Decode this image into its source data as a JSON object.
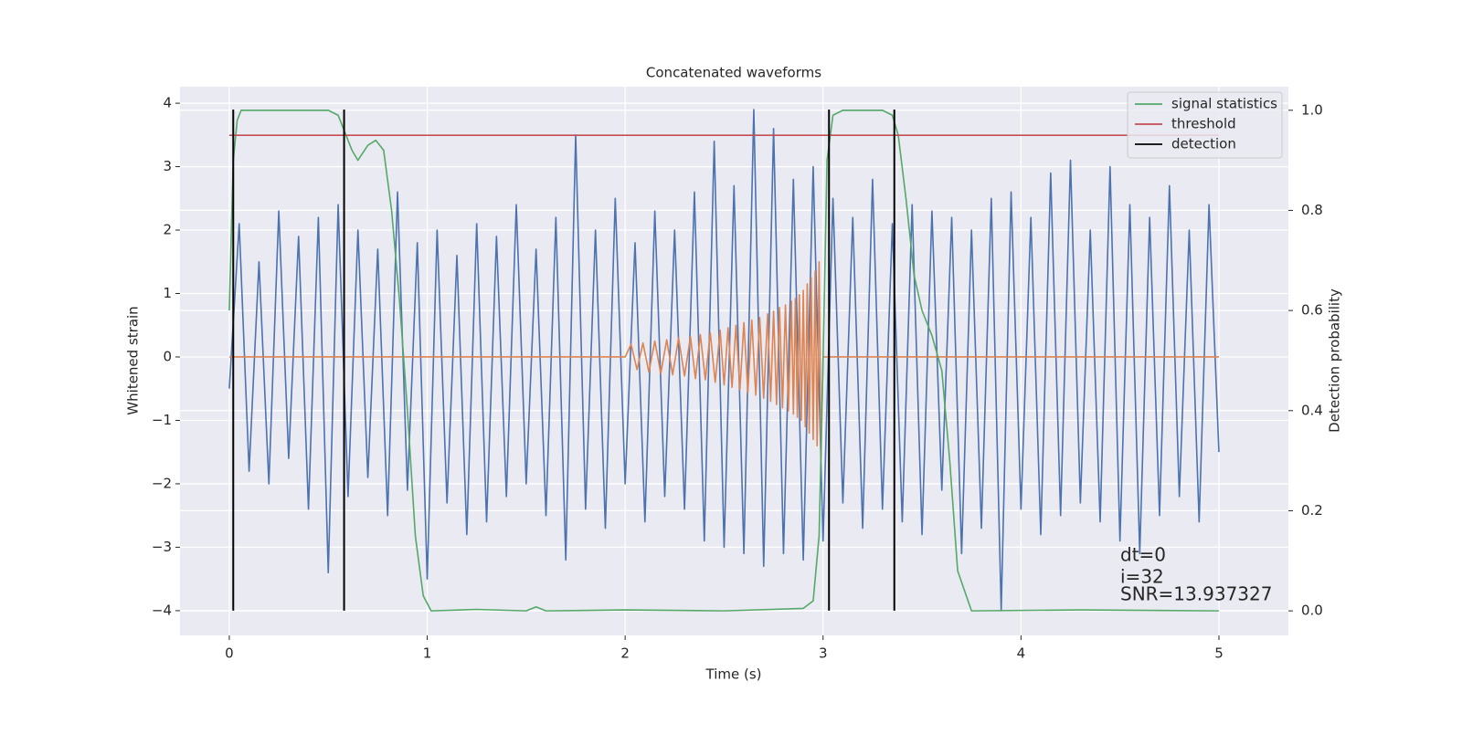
{
  "chart_data": {
    "type": "line",
    "title": "Concatenated waveforms",
    "x_label": "Time (s)",
    "y_label": "Whitened strain",
    "y2_label": "Detection probability",
    "xlim": [
      -0.249,
      5.351
    ],
    "xticks": [
      0,
      1,
      2,
      3,
      4,
      5
    ],
    "ylim": [
      -4.39,
      4.26
    ],
    "yticks": [
      {
        "value": -4,
        "label": "−4"
      },
      {
        "value": -3,
        "label": "−3"
      },
      {
        "value": -2,
        "label": "−2"
      },
      {
        "value": -1,
        "label": "−1"
      },
      0,
      1,
      2,
      3,
      4
    ],
    "y2lim": [
      -0.049,
      1.047
    ],
    "y2ticks": [
      {
        "value": 0,
        "label": "0.0"
      },
      {
        "value": 0.2,
        "label": "0.2"
      },
      {
        "value": 0.4,
        "label": "0.4"
      },
      {
        "value": 0.6,
        "label": "0.6"
      },
      {
        "value": 0.8,
        "label": "0.8"
      },
      {
        "value": 1,
        "label": "1.0"
      }
    ],
    "grid": true,
    "legend": "upper right",
    "series": [
      {
        "color": "#4c72b0",
        "x": [
          0,
          0.05,
          0.1,
          0.15,
          0.2,
          0.25,
          0.3,
          0.35,
          0.4,
          0.45,
          0.5,
          0.55,
          0.6,
          0.65,
          0.7,
          0.75,
          0.8,
          0.85,
          0.9,
          0.95,
          1,
          1.05,
          1.1,
          1.15,
          1.2,
          1.25,
          1.3,
          1.35,
          1.4,
          1.45,
          1.5,
          1.55,
          1.6,
          1.65,
          1.7,
          1.75,
          1.8,
          1.85,
          1.9,
          1.95,
          2,
          2.05,
          2.1,
          2.15,
          2.2,
          2.25,
          2.3,
          2.35,
          2.4,
          2.45,
          2.5,
          2.55,
          2.6,
          2.65,
          2.7,
          2.75,
          2.8,
          2.85,
          2.9,
          2.95,
          3,
          3.05,
          3.1,
          3.15,
          3.2,
          3.25,
          3.3,
          3.35,
          3.4,
          3.45,
          3.5,
          3.55,
          3.6,
          3.65,
          3.7,
          3.75,
          3.8,
          3.85,
          3.9,
          3.95,
          4,
          4.05,
          4.1,
          4.15,
          4.2,
          4.25,
          4.3,
          4.35,
          4.4,
          4.45,
          4.5,
          4.55,
          4.6,
          4.65,
          4.7,
          4.75,
          4.8,
          4.85,
          4.9,
          4.95,
          5
        ],
        "values": [
          -0.5,
          2.1,
          -1.8,
          1.5,
          -2.0,
          2.3,
          -1.6,
          1.9,
          -2.4,
          2.2,
          -3.4,
          2.4,
          -2.2,
          2.0,
          -1.9,
          1.7,
          -2.5,
          2.6,
          -2.1,
          1.8,
          -3.5,
          2.0,
          -2.3,
          1.6,
          -2.8,
          2.1,
          -2.6,
          1.9,
          -2.2,
          2.4,
          -2.0,
          1.7,
          -2.5,
          2.2,
          -3.2,
          3.5,
          -2.4,
          2.0,
          -2.7,
          2.5,
          -2.0,
          1.8,
          -2.6,
          2.3,
          -2.2,
          2.0,
          -2.4,
          2.6,
          -2.9,
          3.4,
          -3.0,
          2.7,
          -3.1,
          3.9,
          -3.3,
          3.6,
          -3.1,
          2.8,
          -3.2,
          3.0,
          -2.9,
          2.5,
          -2.3,
          2.2,
          -2.7,
          2.8,
          -2.4,
          2.1,
          -2.6,
          2.4,
          -2.8,
          2.3,
          -2.1,
          2.2,
          -3.1,
          2.0,
          -2.7,
          2.5,
          -4.0,
          2.6,
          -2.4,
          2.2,
          -2.8,
          2.9,
          -2.5,
          3.1,
          -2.3,
          2.0,
          -2.6,
          3.0,
          -2.9,
          2.4,
          -3.1,
          2.2,
          -2.5,
          2.7,
          -2.2,
          2.0,
          -2.6,
          2.4,
          -1.5
        ]
      },
      {
        "color": "#dd8452",
        "x": [
          0,
          2.0,
          2.03,
          2.06,
          2.09,
          2.12,
          2.15,
          2.18,
          2.21,
          2.24,
          2.27,
          2.3,
          2.33,
          2.355,
          2.38,
          2.405,
          2.43,
          2.455,
          2.48,
          2.5,
          2.52,
          2.54,
          2.56,
          2.58,
          2.6,
          2.62,
          2.64,
          2.66,
          2.68,
          2.7,
          2.72,
          2.735,
          2.75,
          2.765,
          2.78,
          2.795,
          2.81,
          2.825,
          2.84,
          2.85,
          2.86,
          2.87,
          2.88,
          2.89,
          2.9,
          2.91,
          2.92,
          2.93,
          2.94,
          2.95,
          2.96,
          2.97,
          2.98,
          2.99,
          3.0,
          5.0
        ],
        "values": [
          0,
          0,
          0.2,
          -0.2,
          0.22,
          -0.24,
          0.25,
          -0.26,
          0.27,
          -0.28,
          0.3,
          -0.3,
          0.32,
          -0.34,
          0.35,
          -0.36,
          0.38,
          -0.4,
          0.42,
          -0.44,
          0.46,
          -0.48,
          0.5,
          -0.52,
          0.54,
          -0.56,
          0.58,
          -0.6,
          0.62,
          -0.65,
          0.68,
          -0.7,
          0.72,
          -0.75,
          0.78,
          -0.8,
          0.82,
          -0.85,
          0.88,
          -0.9,
          0.92,
          -0.95,
          0.98,
          -1.0,
          1.05,
          -1.1,
          1.15,
          -1.2,
          1.25,
          -1.3,
          1.35,
          -1.4,
          1.5,
          -1.6,
          0,
          0
        ]
      },
      {
        "name": "signal statistics",
        "color": "#55a868",
        "axis": "y2",
        "x": [
          0,
          0.01,
          0.02,
          0.04,
          0.06,
          0.1,
          0.5,
          0.55,
          0.58,
          0.62,
          0.65,
          0.7,
          0.74,
          0.78,
          0.82,
          0.86,
          0.9,
          0.94,
          0.98,
          1.02,
          1.25,
          1.5,
          1.55,
          1.6,
          2.0,
          2.5,
          2.9,
          2.95,
          2.98,
          3.0,
          3.02,
          3.05,
          3.1,
          3.3,
          3.35,
          3.38,
          3.42,
          3.46,
          3.5,
          3.55,
          3.6,
          3.64,
          3.68,
          3.75,
          4.3,
          5.0
        ],
        "values": [
          0.6,
          0.75,
          0.9,
          0.98,
          1.0,
          1.0,
          1.0,
          0.99,
          0.96,
          0.92,
          0.9,
          0.93,
          0.94,
          0.92,
          0.8,
          0.62,
          0.4,
          0.15,
          0.03,
          0.0,
          0.003,
          0.0,
          0.008,
          0.0,
          0.002,
          0.0,
          0.005,
          0.02,
          0.15,
          0.5,
          0.9,
          0.99,
          1.0,
          1.0,
          0.99,
          0.95,
          0.82,
          0.67,
          0.6,
          0.55,
          0.48,
          0.3,
          0.08,
          0.0,
          0.002,
          0.0
        ]
      },
      {
        "name": "threshold",
        "color": "#c44e52",
        "axis": "y2",
        "x": [
          0,
          5
        ],
        "values": [
          0.95,
          0.95
        ]
      }
    ],
    "detections": {
      "name": "detection",
      "color": "#000000",
      "x": [
        0.02,
        0.58,
        3.03,
        3.36
      ],
      "y_range": [
        -4,
        3.9
      ]
    },
    "annotations": [
      "dt=0",
      "i=32",
      "SNR=13.937327"
    ]
  }
}
